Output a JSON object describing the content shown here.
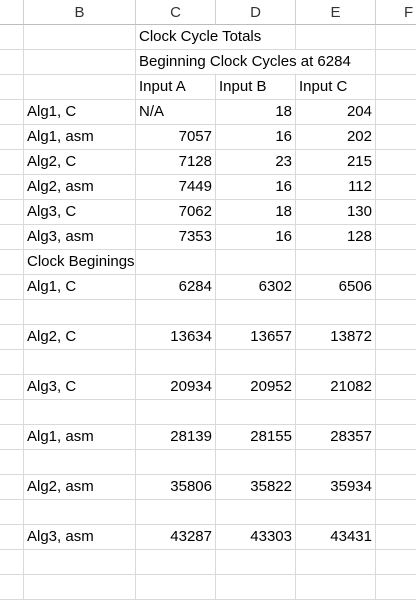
{
  "columns": [
    "B",
    "C",
    "D",
    "E",
    "F"
  ],
  "rows": [
    {
      "b": "",
      "c": "Clock Cycle Totals",
      "d": "",
      "e": ""
    },
    {
      "b": "",
      "c": "Beginning Clock Cycles at 6284",
      "d": "",
      "e": ""
    },
    {
      "b": "",
      "c": "Input A",
      "d": "Input B",
      "e": "Input C"
    },
    {
      "b": "Alg1, C",
      "c": "N/A",
      "d": "18",
      "e": "204"
    },
    {
      "b": "Alg1, asm",
      "c": "7057",
      "d": "16",
      "e": "202"
    },
    {
      "b": "Alg2, C",
      "c": "7128",
      "d": "23",
      "e": "215"
    },
    {
      "b": "Alg2, asm",
      "c": "7449",
      "d": "16",
      "e": "112"
    },
    {
      "b": "Alg3, C",
      "c": "7062",
      "d": "18",
      "e": "130"
    },
    {
      "b": "Alg3, asm",
      "c": "7353",
      "d": "16",
      "e": "128"
    },
    {
      "b": "Clock Beginings",
      "c": "",
      "d": "",
      "e": ""
    },
    {
      "b": "Alg1, C",
      "c": "6284",
      "d": "6302",
      "e": "6506"
    },
    {
      "b": "",
      "c": "",
      "d": "",
      "e": ""
    },
    {
      "b": "Alg2, C",
      "c": "13634",
      "d": "13657",
      "e": "13872"
    },
    {
      "b": "",
      "c": "",
      "d": "",
      "e": ""
    },
    {
      "b": "Alg3, C",
      "c": "20934",
      "d": "20952",
      "e": "21082"
    },
    {
      "b": "",
      "c": "",
      "d": "",
      "e": ""
    },
    {
      "b": "Alg1, asm",
      "c": "28139",
      "d": "28155",
      "e": "28357"
    },
    {
      "b": "",
      "c": "",
      "d": "",
      "e": ""
    },
    {
      "b": "Alg2, asm",
      "c": "35806",
      "d": "35822",
      "e": "35934"
    },
    {
      "b": "",
      "c": "",
      "d": "",
      "e": ""
    },
    {
      "b": "Alg3, asm",
      "c": "43287",
      "d": "43303",
      "e": "43431"
    },
    {
      "b": "",
      "c": "",
      "d": "",
      "e": ""
    },
    {
      "b": "",
      "c": "",
      "d": "",
      "e": ""
    }
  ]
}
